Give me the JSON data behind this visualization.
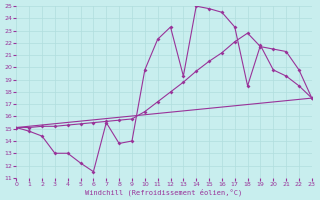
{
  "xlabel": "Windchill (Refroidissement éolien,°C)",
  "bg_color": "#c8eeee",
  "line_color": "#993399",
  "grid_color": "#b0dede",
  "xlim": [
    0,
    23
  ],
  "ylim": [
    11,
    25
  ],
  "yticks": [
    11,
    12,
    13,
    14,
    15,
    16,
    17,
    18,
    19,
    20,
    21,
    22,
    23,
    24,
    25
  ],
  "xticks": [
    0,
    1,
    2,
    3,
    4,
    5,
    6,
    7,
    8,
    9,
    10,
    11,
    12,
    13,
    14,
    15,
    16,
    17,
    18,
    19,
    20,
    21,
    22,
    23
  ],
  "line1_x": [
    0,
    1,
    2,
    3,
    4,
    5,
    6,
    7,
    8,
    9,
    10,
    11,
    12,
    13,
    14,
    15,
    16,
    17,
    18,
    19,
    20,
    21,
    22,
    23
  ],
  "line1_y": [
    15.1,
    14.8,
    14.4,
    13.0,
    13.0,
    12.2,
    11.5,
    15.5,
    13.8,
    14.0,
    19.8,
    22.3,
    23.3,
    19.3,
    25.0,
    24.8,
    24.5,
    23.3,
    18.5,
    21.8,
    19.8,
    19.3,
    18.5,
    17.5
  ],
  "line2_x": [
    0,
    1,
    2,
    3,
    4,
    5,
    6,
    7,
    8,
    9,
    10,
    11,
    12,
    13,
    14,
    15,
    16,
    17,
    18,
    19,
    20,
    21,
    22,
    23
  ],
  "line2_y": [
    15.1,
    15.1,
    15.2,
    15.2,
    15.3,
    15.4,
    15.5,
    15.6,
    15.7,
    15.8,
    16.4,
    17.2,
    18.0,
    18.8,
    19.7,
    20.5,
    21.2,
    22.1,
    22.8,
    21.7,
    21.5,
    21.3,
    19.8,
    17.5
  ],
  "line3_x": [
    0,
    23
  ],
  "line3_y": [
    15.1,
    17.5
  ]
}
